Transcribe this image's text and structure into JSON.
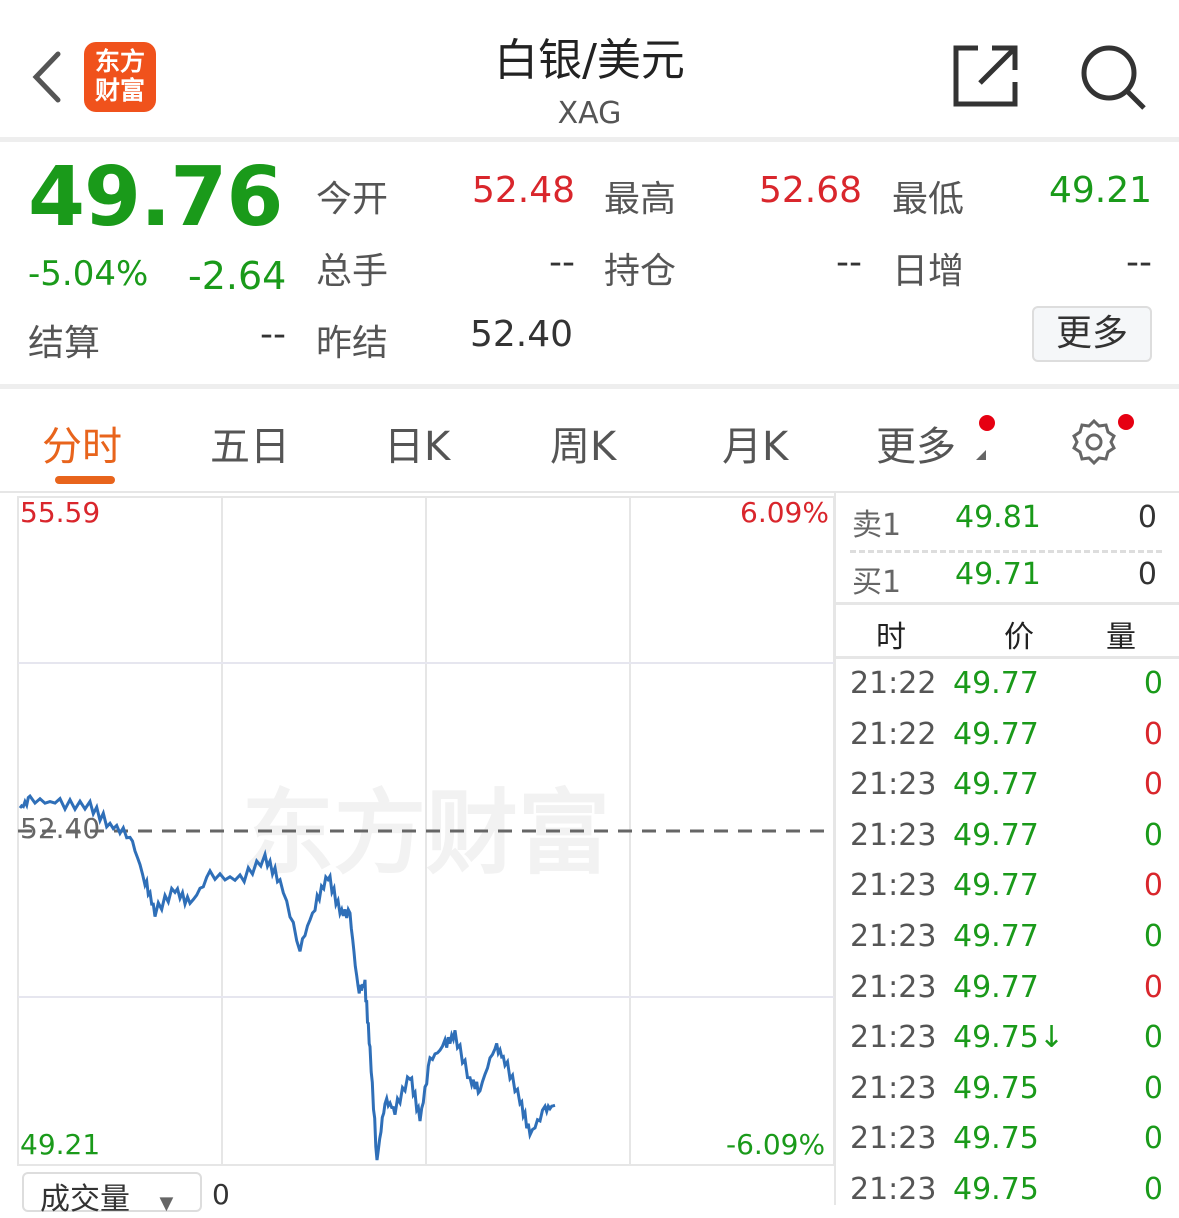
{
  "header": {
    "title": "白银/美元",
    "subtitle": "XAG",
    "logo_text": [
      "东方",
      "财富"
    ],
    "icons": [
      "back-icon",
      "share-icon",
      "search-icon"
    ]
  },
  "quote": {
    "price": "49.76",
    "change_pct": "-5.04%",
    "change": "-2.64",
    "fields": [
      {
        "label": "今开",
        "value": "52.48",
        "color": "#d9262c"
      },
      {
        "label": "最高",
        "value": "52.68",
        "color": "#d9262c"
      },
      {
        "label": "最低",
        "value": "49.21",
        "color": "#1a9a1a"
      },
      {
        "label": "总手",
        "value": "--",
        "color": "#333333"
      },
      {
        "label": "持仓",
        "value": "--",
        "color": "#333333"
      },
      {
        "label": "日增",
        "value": "--",
        "color": "#333333"
      },
      {
        "label": "结算",
        "value": "--",
        "color": "#333333"
      },
      {
        "label": "昨结",
        "value": "52.40",
        "color": "#333333"
      }
    ],
    "more_label": "更多"
  },
  "tabs": [
    {
      "label": "分时",
      "active": true
    },
    {
      "label": "五日"
    },
    {
      "label": "日K"
    },
    {
      "label": "周K"
    },
    {
      "label": "月K"
    },
    {
      "label": "更多"
    }
  ],
  "colors": {
    "up": "#d9262c",
    "down": "#1a9a1a",
    "accent": "#e8641c",
    "line": "#2f6fb8"
  },
  "chart_data": {
    "type": "line",
    "watermark": "东方财富",
    "ylim": [
      49.21,
      55.59
    ],
    "y_top_label": "55.59",
    "y_bottom_label": "49.21",
    "y_ref_label": "52.40",
    "ref": 52.4,
    "pct_top_label": "6.09%",
    "pct_bottom_label": "-6.09%",
    "grid": true,
    "series": [
      {
        "values": [
          52.62,
          52.7,
          52.66,
          52.64,
          52.46,
          52.36,
          51.93,
          51.63,
          51.84,
          51.7,
          51.98,
          51.93,
          52.14,
          51.93,
          51.28,
          51.69,
          51.98,
          51.63,
          51.6,
          50.88,
          50.93,
          50.31,
          49.26,
          49.83,
          49.74,
          50.07,
          49.64,
          50.21,
          50.36,
          50.45,
          50.02,
          49.93,
          50.36,
          50.21,
          49.83,
          49.5,
          49.74,
          49.78
        ]
      }
    ]
  },
  "volume": {
    "selector": "成交量",
    "value": "0"
  },
  "orderbook": [
    {
      "label": "卖1",
      "price": "49.81",
      "vol": "0"
    },
    {
      "label": "买1",
      "price": "49.71",
      "vol": "0"
    }
  ],
  "ticks_header": [
    "时",
    "价",
    "量"
  ],
  "ticks": [
    {
      "time": "21:22",
      "price": "49.77",
      "vol": "0",
      "vc": "#1a9a1a"
    },
    {
      "time": "21:22",
      "price": "49.77",
      "vol": "0",
      "vc": "#d9262c"
    },
    {
      "time": "21:23",
      "price": "49.77",
      "vol": "0",
      "vc": "#d9262c"
    },
    {
      "time": "21:23",
      "price": "49.77",
      "vol": "0",
      "vc": "#1a9a1a"
    },
    {
      "time": "21:23",
      "price": "49.77",
      "vol": "0",
      "vc": "#d9262c"
    },
    {
      "time": "21:23",
      "price": "49.77",
      "vol": "0",
      "vc": "#1a9a1a"
    },
    {
      "time": "21:23",
      "price": "49.77",
      "vol": "0",
      "vc": "#d9262c"
    },
    {
      "time": "21:23",
      "price": "49.75↓",
      "vol": "0",
      "vc": "#1a9a1a"
    },
    {
      "time": "21:23",
      "price": "49.75",
      "vol": "0",
      "vc": "#1a9a1a"
    },
    {
      "time": "21:23",
      "price": "49.75",
      "vol": "0",
      "vc": "#1a9a1a"
    },
    {
      "time": "21:23",
      "price": "49.75",
      "vol": "0",
      "vc": "#1a9a1a"
    }
  ]
}
